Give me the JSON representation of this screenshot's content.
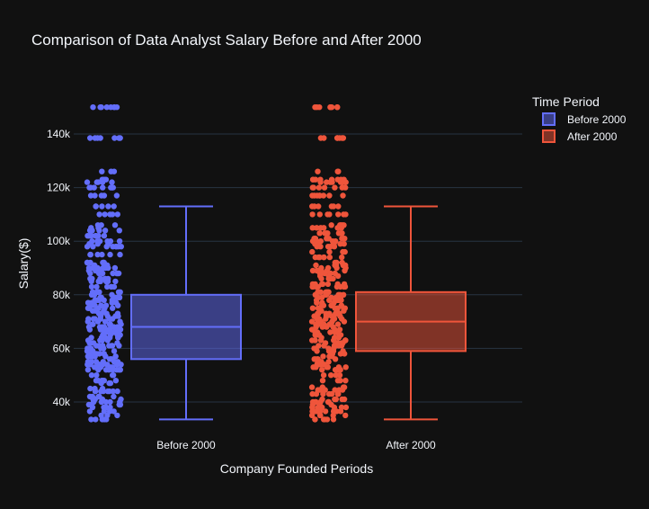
{
  "chart_data": {
    "type": "box",
    "title": "Comparison of Data Analyst Salary Before and After 2000",
    "xlabel": "Company Founded Periods",
    "ylabel": "Salary($)",
    "categories": [
      "Before 2000",
      "After 2000"
    ],
    "ylim": [
      30000,
      155000
    ],
    "yticks": [
      40000,
      60000,
      80000,
      100000,
      120000,
      140000
    ],
    "ytick_labels": [
      "40k",
      "60k",
      "80k",
      "100k",
      "120k",
      "140k"
    ],
    "grid": true,
    "legend": {
      "title": "Time Period",
      "placement": "top-right",
      "entries": [
        "Before 2000",
        "After 2000"
      ]
    },
    "series": [
      {
        "name": "Before 2000",
        "color": "#636efa",
        "box": {
          "lowerfence": 33500,
          "q1": 56000,
          "median": 68000,
          "q3": 80000,
          "upperfence": 113000
        },
        "points": [
          33500,
          35000,
          36500,
          38000,
          39000,
          40000,
          41000,
          42000,
          44000,
          45000,
          47000,
          48000,
          50000,
          52000,
          53000,
          54000,
          55000,
          56000,
          57000,
          58000,
          59000,
          60000,
          61000,
          62000,
          63000,
          64000,
          65000,
          66000,
          67000,
          68000,
          69000,
          70000,
          71000,
          72000,
          73000,
          74000,
          75000,
          76000,
          77000,
          78000,
          79000,
          80000,
          81000,
          83000,
          85000,
          86000,
          88000,
          89000,
          90000,
          91000,
          92000,
          95000,
          98000,
          99000,
          100000,
          102000,
          104000,
          105000,
          106000,
          110000,
          113000,
          117000,
          120000,
          122000,
          123000,
          126000,
          138500,
          150000
        ]
      },
      {
        "name": "After 2000",
        "color": "#ef553b",
        "box": {
          "lowerfence": 33500,
          "q1": 59000,
          "median": 70000,
          "q3": 81000,
          "upperfence": 113000
        },
        "points": [
          33500,
          35000,
          36500,
          38000,
          39000,
          40000,
          41000,
          43000,
          44500,
          45500,
          48000,
          50000,
          52000,
          53000,
          54000,
          55000,
          56000,
          57000,
          58000,
          59000,
          60000,
          61000,
          62000,
          63000,
          64000,
          65000,
          66000,
          67000,
          68000,
          69000,
          70000,
          71000,
          72000,
          73000,
          74000,
          75000,
          76000,
          77000,
          78000,
          79000,
          80000,
          81000,
          83000,
          84000,
          86000,
          87000,
          88000,
          89000,
          90000,
          91000,
          92000,
          94000,
          96000,
          98000,
          99000,
          100000,
          101000,
          103000,
          105000,
          106000,
          110000,
          113000,
          117000,
          120000,
          122000,
          123000,
          126000,
          138500,
          150000
        ]
      }
    ]
  }
}
